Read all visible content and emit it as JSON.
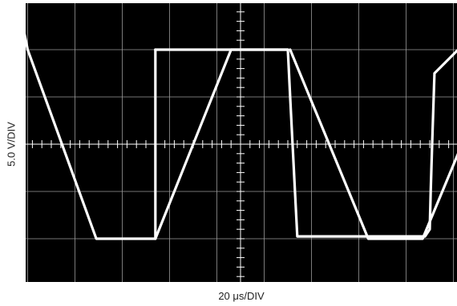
{
  "chart_data": {
    "type": "line",
    "title": "",
    "xlabel": "20 μs/DIV",
    "ylabel": "5.0 V/DIV",
    "x_unit": "divisions",
    "y_unit": "divisions",
    "xlim": [
      0,
      9.1
    ],
    "ylim": [
      -3,
      3
    ],
    "grid": true,
    "background": "#000000",
    "grid_color": "#9a9a9a",
    "trace_color": "#ffffff",
    "series": [
      {
        "x": [
          -0.2,
          0.0,
          1.45,
          2.7,
          2.7
        ],
        "y": [
          3.0,
          2.0,
          -2.0,
          -2.0,
          2.0
        ]
      },
      {
        "x": [
          2.7,
          5.5,
          5.55,
          5.6,
          5.65,
          5.7,
          8.4,
          8.5,
          8.52,
          8.55,
          8.6,
          9.1
        ],
        "y": [
          2.0,
          2.0,
          1.0,
          0.0,
          -1.0,
          -1.95,
          -1.95,
          -1.8,
          -1.0,
          0.0,
          1.5,
          2.0
        ]
      },
      {
        "x": [
          2.7,
          2.7,
          4.3,
          5.5
        ],
        "y": [
          -2.0,
          -2.0,
          2.0,
          2.0
        ]
      },
      {
        "x": [
          5.55,
          7.2,
          8.35,
          9.1
        ],
        "y": [
          2.0,
          -2.0,
          -2.0,
          -0.2
        ]
      }
    ]
  }
}
